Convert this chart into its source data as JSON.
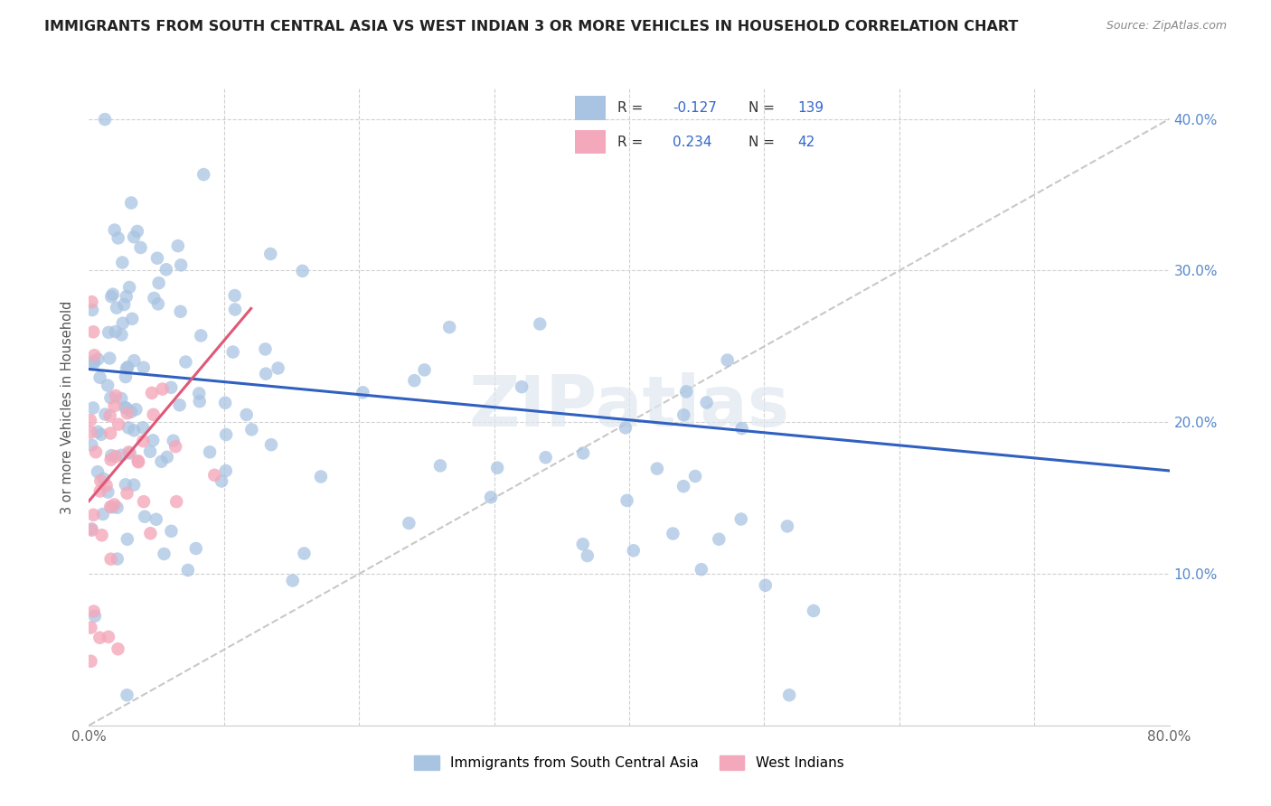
{
  "title": "IMMIGRANTS FROM SOUTH CENTRAL ASIA VS WEST INDIAN 3 OR MORE VEHICLES IN HOUSEHOLD CORRELATION CHART",
  "source": "Source: ZipAtlas.com",
  "ylabel": "3 or more Vehicles in Household",
  "x_min": 0.0,
  "x_max": 0.8,
  "y_min": 0.0,
  "y_max": 0.42,
  "blue_color": "#a8c4e2",
  "pink_color": "#f4a8bb",
  "blue_line_color": "#3060c0",
  "pink_line_color": "#e05878",
  "grid_color": "#d0d0d0",
  "legend_blue_R": "-0.127",
  "legend_blue_N": "139",
  "legend_pink_R": "0.234",
  "legend_pink_N": "42",
  "legend_label_blue": "Immigrants from South Central Asia",
  "legend_label_pink": "West Indians",
  "watermark": "ZIPatlas",
  "blue_trend_x": [
    0.0,
    0.8
  ],
  "blue_trend_y": [
    0.235,
    0.168
  ],
  "pink_trend_x": [
    0.0,
    0.12
  ],
  "pink_trend_y": [
    0.148,
    0.275
  ],
  "dashed_trend_x": [
    0.0,
    0.8
  ],
  "dashed_trend_y": [
    0.0,
    0.4
  ],
  "right_tick_color": "#5588cc",
  "tick_label_color": "#666666"
}
